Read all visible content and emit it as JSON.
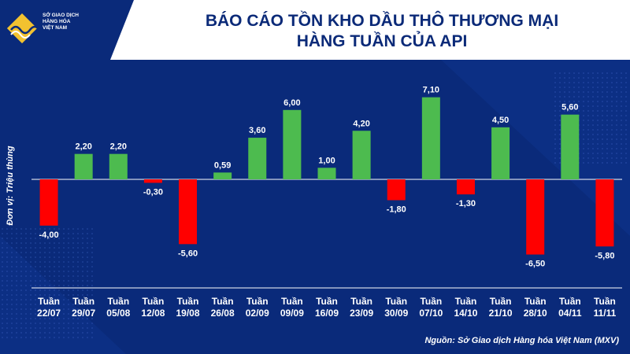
{
  "logo": {
    "lines": [
      "SỞ GIAO DỊCH",
      "HÀNG HÓA",
      "VIỆT NAM"
    ]
  },
  "title": {
    "line1": "BÁO CÁO TỒN KHO DẦU THÔ THƯƠNG MẠI",
    "line2": "HÀNG TUẦN CỦA API"
  },
  "source": "Nguồn: Sở Giao dịch Hàng hóa Việt Nam (MXV)",
  "colors": {
    "positive": "#4dbb4f",
    "negative": "#ff0000",
    "background": "#0a2a7a",
    "title": "#0b2a78"
  },
  "chart_data": {
    "type": "bar",
    "ylabel": "Đơn vị: Triệu thùng",
    "xlabel": "",
    "title": "",
    "categories": [
      [
        "Tuần",
        "22/07"
      ],
      [
        "Tuần",
        "29/07"
      ],
      [
        "Tuần",
        "05/08"
      ],
      [
        "Tuần",
        "12/08"
      ],
      [
        "Tuần",
        "19/08"
      ],
      [
        "Tuần",
        "26/08"
      ],
      [
        "Tuần",
        "02/09"
      ],
      [
        "Tuần",
        "09/09"
      ],
      [
        "Tuần",
        "16/09"
      ],
      [
        "Tuần",
        "23/09"
      ],
      [
        "Tuần",
        "30/09"
      ],
      [
        "Tuần",
        "07/10"
      ],
      [
        "Tuần",
        "14/10"
      ],
      [
        "Tuần",
        "21/10"
      ],
      [
        "Tuần",
        "28/10"
      ],
      [
        "Tuần",
        "04/11"
      ],
      [
        "Tuần",
        "11/11"
      ]
    ],
    "values": [
      -4.0,
      2.2,
      2.2,
      -0.3,
      -5.6,
      0.59,
      3.6,
      6.0,
      1.0,
      4.2,
      -1.8,
      7.1,
      -1.3,
      4.5,
      -6.5,
      5.6,
      -5.8
    ],
    "labels": [
      "-4,00",
      "2,20",
      "2,20",
      "-0,30",
      "-5,60",
      "0,59",
      "3,60",
      "6,00",
      "1,00",
      "4,20",
      "-1,80",
      "7,10",
      "-1,30",
      "4,50",
      "-6,50",
      "5,60",
      "-5,80"
    ],
    "ylim": [
      -8,
      8
    ],
    "grid": false,
    "legend": "none"
  }
}
